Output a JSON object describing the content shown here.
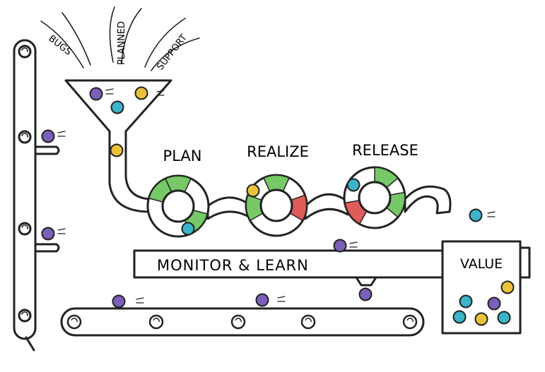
{
  "inputs": [
    {
      "label": "BUGS",
      "color": "#7b5fb8"
    },
    {
      "label": "PLANNED",
      "color": "#3bb3c9"
    },
    {
      "label": "SUPPORT",
      "color": "#e9c23a"
    }
  ],
  "stages": [
    {
      "label": "PLAN"
    },
    {
      "label": "REALIZE"
    },
    {
      "label": "RELEASE"
    }
  ],
  "monitor": {
    "label": "MONITOR & LEARN"
  },
  "value": {
    "label": "VALUE"
  },
  "colors": {
    "ink": "#222222",
    "purple": "#7b5fb8",
    "cyan": "#3bb3c9",
    "yellow": "#e9c23a",
    "green": "#5fbf4e",
    "red": "#d9413c"
  },
  "icons": [
    "funnel-icon",
    "lifebuoy-wheel-icon",
    "conveyor-roller-icon",
    "ball-icon"
  ]
}
